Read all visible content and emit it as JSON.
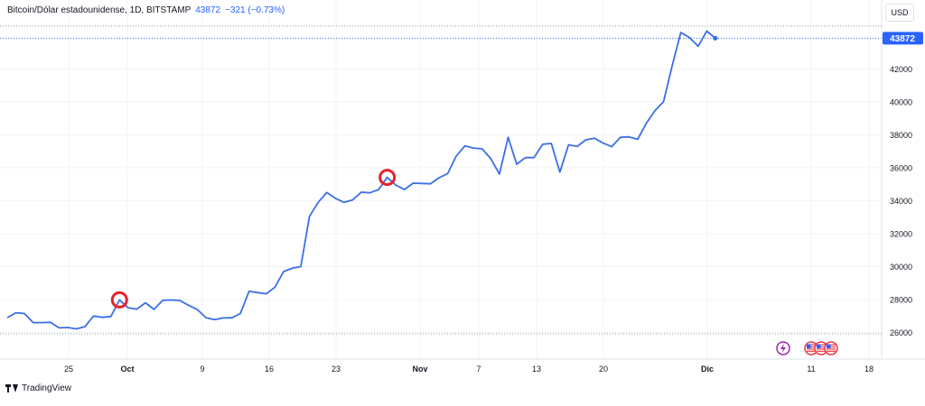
{
  "header": {
    "symbol": "Bitcoin/Dólar estadounidense, 1D, BITSTAMP",
    "last_price": "43872",
    "change": "−321 (−0.73%)"
  },
  "price_axis": {
    "currency": "USD",
    "last_price_label": "43872"
  },
  "footer": {
    "brand": "TradingView"
  },
  "colors": {
    "line": "#3b6fe6",
    "marker": "#e3242b",
    "grid": "#f0f3fa",
    "dotted": "#9598a1",
    "price_tag": "#2962ff",
    "event_purple": "#9c27b0",
    "event_red": "#f23645"
  },
  "icons": {
    "event_1": "lightning-icon",
    "event_2": "us-flag-icon",
    "event_3": "us-flag-icon",
    "event_4": "us-flag-icon"
  },
  "chart_data": {
    "type": "line",
    "title": "Bitcoin/Dólar estadounidense, 1D, BITSTAMP",
    "xlabel": "",
    "ylabel": "",
    "x_tick_labels": [
      "25",
      "Oct",
      "9",
      "16",
      "23",
      "Nov",
      "7",
      "13",
      "20",
      "Dic",
      "11",
      "18"
    ],
    "y_tick_labels": [
      "26000",
      "28000",
      "30000",
      "32000",
      "34000",
      "36000",
      "38000",
      "40000",
      "42000"
    ],
    "ylim": [
      25000,
      45300
    ],
    "grid": true,
    "series": [
      {
        "values": [
          26900,
          27200,
          27150,
          26600,
          26600,
          26620,
          26280,
          26300,
          26220,
          26350,
          27000,
          26920,
          26970,
          27980,
          27500,
          27420,
          27800,
          27400,
          27950,
          27970,
          27940,
          27650,
          27400,
          26900,
          26780,
          26880,
          26890,
          27150,
          28500,
          28420,
          28350,
          28750,
          29700,
          29900,
          30000,
          33050,
          33900,
          34500,
          34150,
          33900,
          34050,
          34520,
          34480,
          34680,
          35420,
          34950,
          34680,
          35070,
          35050,
          35030,
          35400,
          35650,
          36720,
          37330,
          37200,
          37150,
          36550,
          35620,
          37850,
          36220,
          36620,
          36620,
          37430,
          37480,
          35740,
          37400,
          37300,
          37700,
          37800,
          37500,
          37280,
          37850,
          37880,
          37730,
          38700,
          39470,
          40020,
          42200,
          44220,
          43920,
          43380,
          44300,
          43872
        ]
      }
    ],
    "marked_points": [
      {
        "label": "Oct 1",
        "value": 27980
      },
      {
        "label": "Nov 1",
        "value": 35420
      }
    ],
    "last_value": 43872
  }
}
